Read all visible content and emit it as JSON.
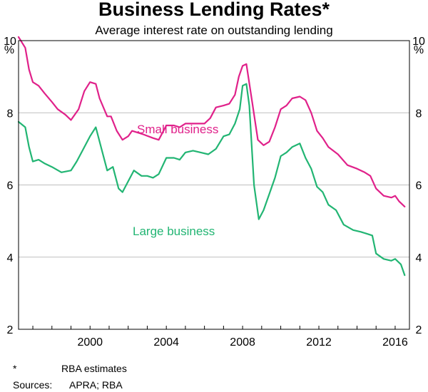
{
  "chart_data": {
    "type": "line",
    "title": "Business Lending Rates*",
    "subtitle": "Average interest rate on outstanding lending",
    "ylabel_left": "%",
    "ylabel_right": "%",
    "xlim": [
      1996.25,
      2016.75
    ],
    "ylim": [
      2,
      10
    ],
    "yticks": [
      "2",
      "4",
      "6",
      "8",
      "10"
    ],
    "xticks": [
      "2000",
      "2004",
      "2008",
      "2012",
      "2016"
    ],
    "grid": true,
    "series": [
      {
        "name": "Small business",
        "color": "#e0218a",
        "x": [
          1996.25,
          1996.6,
          1996.8,
          1997.0,
          1997.3,
          1997.6,
          1998.0,
          1998.3,
          1998.7,
          1999.0,
          1999.4,
          1999.7,
          2000.0,
          2000.3,
          2000.5,
          2000.9,
          2001.1,
          2001.4,
          2001.7,
          2002.0,
          2002.2,
          2002.8,
          2003.3,
          2003.6,
          2004.0,
          2004.4,
          2004.7,
          2005.0,
          2005.5,
          2006.0,
          2006.3,
          2006.6,
          2007.0,
          2007.3,
          2007.6,
          2007.8,
          2008.0,
          2008.2,
          2008.5,
          2008.8,
          2009.1,
          2009.4,
          2009.7,
          2010.0,
          2010.3,
          2010.6,
          2011.0,
          2011.3,
          2011.6,
          2011.9,
          2012.2,
          2012.5,
          2013.0,
          2013.5,
          2014.0,
          2014.4,
          2014.7,
          2015.0,
          2015.4,
          2015.8,
          2016.0,
          2016.2,
          2016.5
        ],
        "values": [
          10.1,
          9.8,
          9.2,
          8.85,
          8.75,
          8.55,
          8.3,
          8.1,
          7.95,
          7.8,
          8.1,
          8.6,
          8.85,
          8.8,
          8.4,
          7.9,
          7.9,
          7.5,
          7.25,
          7.35,
          7.5,
          7.4,
          7.3,
          7.25,
          7.65,
          7.65,
          7.6,
          7.7,
          7.7,
          7.7,
          7.85,
          8.15,
          8.2,
          8.25,
          8.5,
          9.0,
          9.3,
          9.35,
          8.3,
          7.25,
          7.1,
          7.2,
          7.6,
          8.1,
          8.2,
          8.4,
          8.45,
          8.35,
          8.0,
          7.5,
          7.3,
          7.05,
          6.85,
          6.55,
          6.45,
          6.35,
          6.25,
          5.9,
          5.7,
          5.65,
          5.7,
          5.55,
          5.4
        ]
      },
      {
        "name": "Large business",
        "color": "#22b573",
        "x": [
          1996.25,
          1996.6,
          1996.8,
          1997.0,
          1997.3,
          1997.6,
          1998.0,
          1998.5,
          1999.0,
          1999.3,
          1999.6,
          2000.0,
          2000.3,
          2000.6,
          2000.9,
          2001.2,
          2001.5,
          2001.7,
          2002.0,
          2002.3,
          2002.7,
          2003.0,
          2003.3,
          2003.6,
          2004.0,
          2004.4,
          2004.7,
          2005.0,
          2005.4,
          2005.8,
          2006.2,
          2006.6,
          2007.0,
          2007.3,
          2007.6,
          2007.85,
          2008.0,
          2008.2,
          2008.35,
          2008.6,
          2008.85,
          2009.1,
          2009.4,
          2009.7,
          2010.0,
          2010.3,
          2010.6,
          2011.0,
          2011.3,
          2011.6,
          2011.9,
          2012.2,
          2012.5,
          2012.9,
          2013.3,
          2013.8,
          2014.2,
          2014.5,
          2014.8,
          2015.0,
          2015.4,
          2015.8,
          2016.0,
          2016.3,
          2016.5
        ],
        "values": [
          7.75,
          7.6,
          7.05,
          6.65,
          6.7,
          6.6,
          6.5,
          6.35,
          6.4,
          6.65,
          6.95,
          7.35,
          7.6,
          7.0,
          6.4,
          6.5,
          5.9,
          5.8,
          6.1,
          6.4,
          6.25,
          6.25,
          6.2,
          6.3,
          6.75,
          6.75,
          6.7,
          6.9,
          6.95,
          6.9,
          6.85,
          7.0,
          7.35,
          7.4,
          7.7,
          8.1,
          8.75,
          8.8,
          8.2,
          6.0,
          5.05,
          5.3,
          5.75,
          6.2,
          6.8,
          6.9,
          7.05,
          7.15,
          6.75,
          6.45,
          5.95,
          5.8,
          5.45,
          5.3,
          4.9,
          4.75,
          4.7,
          4.65,
          4.6,
          4.1,
          3.95,
          3.9,
          3.95,
          3.8,
          3.5
        ]
      }
    ]
  },
  "footnotes": {
    "asterisk_marker": "*",
    "asterisk_text": "RBA estimates",
    "sources_label": "Sources:",
    "sources_text": "APRA; RBA"
  }
}
